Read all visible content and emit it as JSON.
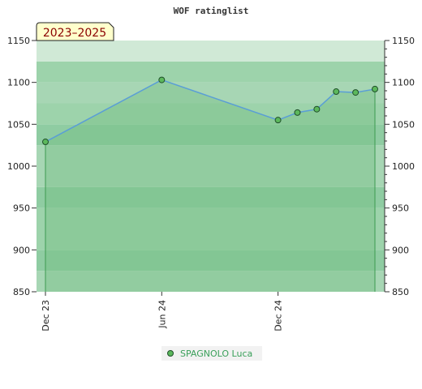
{
  "colors": {
    "series": "#5a9ed6",
    "marker": "#5cb85c",
    "dropline": "#3c9a50",
    "area": "#6dbb7c",
    "legend_text": "#3aa05a",
    "badge_fill": "#ffffcc",
    "badge_text": "#8b0000"
  },
  "chart_data": {
    "type": "line",
    "title": "WOF ratinglist",
    "badge": "2023–2025",
    "x": [
      "2023-12",
      "2024-06",
      "2024-12",
      "2025-01",
      "2025-02",
      "2025-03",
      "2025-04",
      "2025-05"
    ],
    "x_tick_labels": [
      "Dec 23",
      "Jun 24",
      "Dec 24"
    ],
    "series": [
      {
        "name": "SPAGNOLO Luca",
        "values": [
          1029,
          1103,
          1055,
          1064,
          1068,
          1089,
          1088,
          1092
        ]
      }
    ],
    "ylim": [
      850,
      1150
    ],
    "y_ticks": [
      850,
      900,
      950,
      1000,
      1050,
      1100,
      1150
    ],
    "y_axis": "both sides",
    "bands": "horizontal green stripes",
    "legend": "bottom-center"
  }
}
